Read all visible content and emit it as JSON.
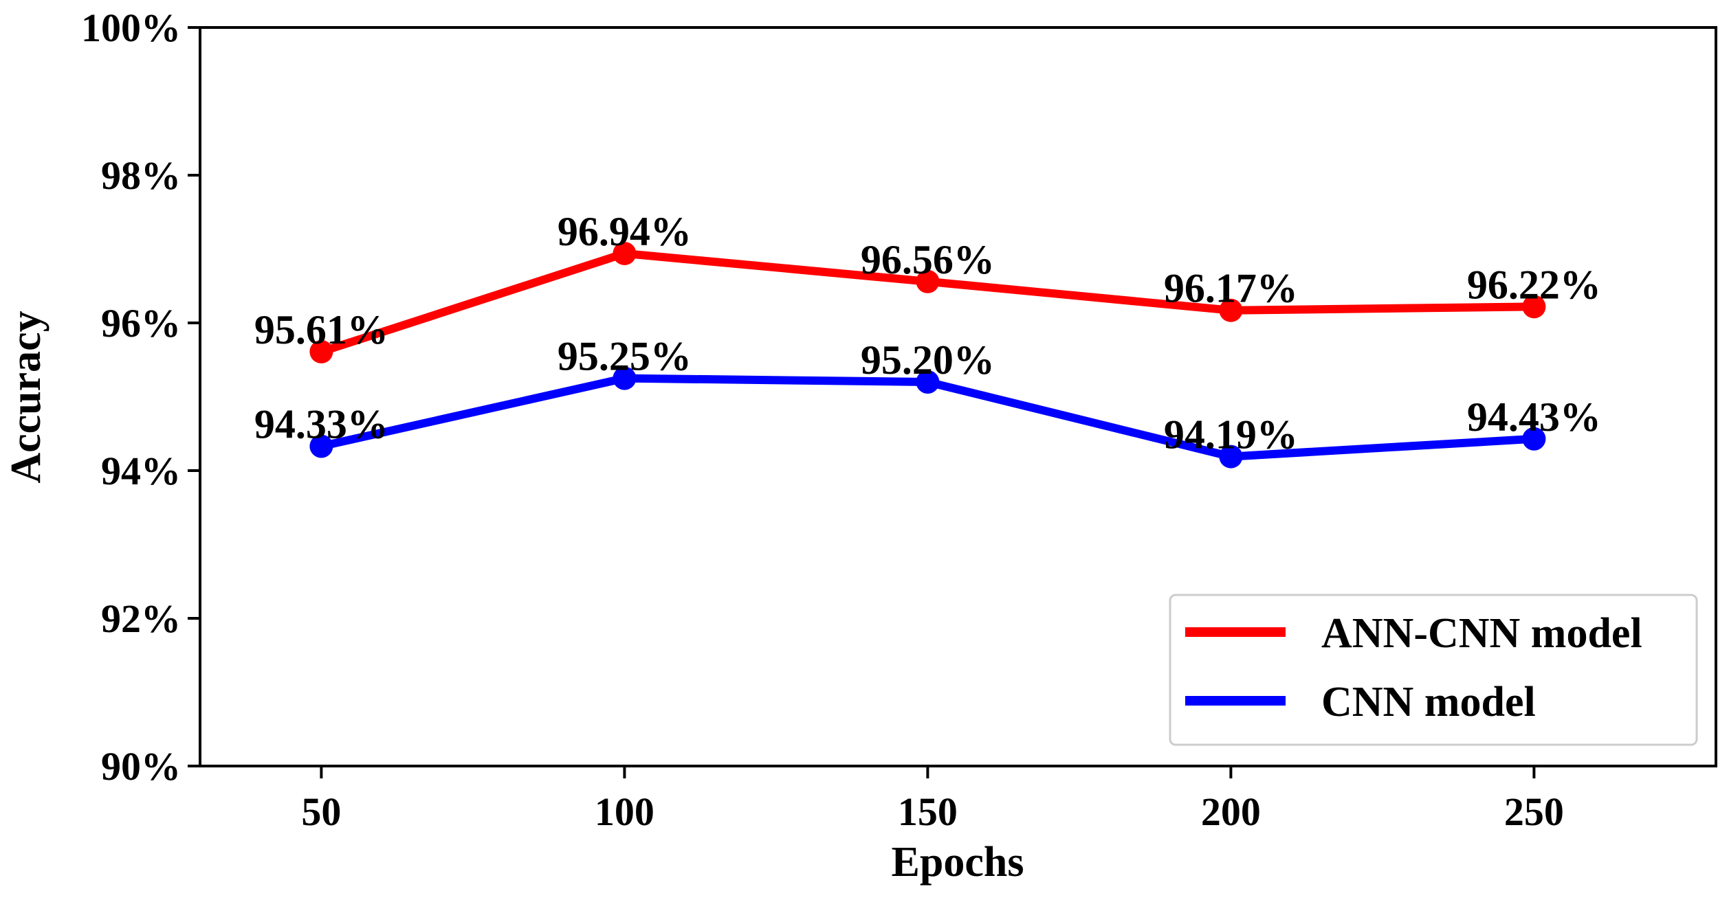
{
  "chart_data": {
    "type": "line",
    "title": "",
    "xlabel": "Epochs",
    "ylabel": "Accuracy",
    "x": [
      50,
      100,
      150,
      200,
      250
    ],
    "xlim": [
      30,
      280
    ],
    "ylim": [
      90,
      100
    ],
    "xticks": [
      "50",
      "100",
      "150",
      "200",
      "250"
    ],
    "yticks": [
      "90%",
      "92%",
      "94%",
      "96%",
      "98%",
      "100%"
    ],
    "yticks_values": [
      90,
      92,
      94,
      96,
      98,
      100
    ],
    "grid": false,
    "legend_position": "lower-right",
    "series": [
      {
        "name": "ANN-CNN model",
        "color": "#ff0000",
        "values": [
          95.61,
          96.94,
          96.56,
          96.17,
          96.22
        ],
        "labels": [
          "95.61%",
          "96.94%",
          "96.56%",
          "96.17%",
          "96.22%"
        ]
      },
      {
        "name": "CNN model",
        "color": "#0000ff",
        "values": [
          94.33,
          95.25,
          95.2,
          94.19,
          94.43
        ],
        "labels": [
          "94.33%",
          "95.25%",
          "95.20%",
          "94.19%",
          "94.43%"
        ]
      }
    ]
  }
}
